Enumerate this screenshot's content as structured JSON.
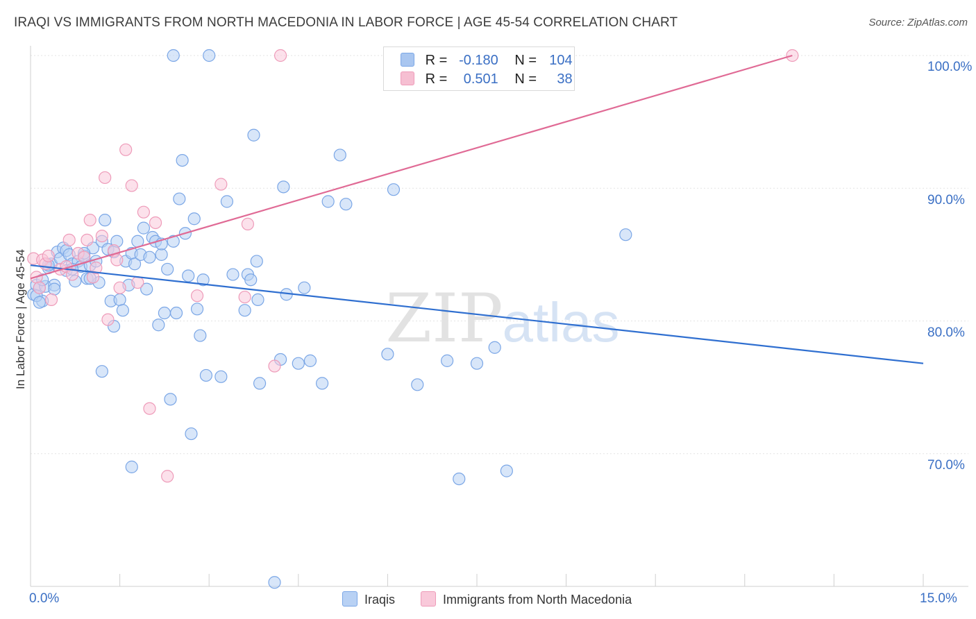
{
  "title": "IRAQI VS IMMIGRANTS FROM NORTH MACEDONIA IN LABOR FORCE | AGE 45-54 CORRELATION CHART",
  "source": "Source: ZipAtlas.com",
  "watermark": {
    "zip": "ZIP",
    "atlas": "atlas"
  },
  "legend": {
    "r_label": "R =",
    "n_label": "N =",
    "rows": [
      {
        "r": "-0.180",
        "n": "104",
        "color": "#a9c6f0",
        "border": "#7aa6e6"
      },
      {
        "r": "0.501",
        "n": "38",
        "color": "#f6bfd2",
        "border": "#ee9bb9"
      }
    ]
  },
  "bottom_legend": [
    {
      "label": "Iraqis",
      "color": "#b8d1f4",
      "border": "#7aa6e6"
    },
    {
      "label": "Immigrants from North Macedonia",
      "color": "#f9c9da",
      "border": "#ee9bb9"
    }
  ],
  "chart_data": {
    "type": "scatter",
    "title": "IRAQI VS IMMIGRANTS FROM NORTH MACEDONIA IN LABOR FORCE | AGE 45-54 CORRELATION CHART",
    "xlabel": "",
    "ylabel": "In Labor Force | Age 45-54",
    "xlim": [
      0,
      15
    ],
    "ylim": [
      60,
      100
    ],
    "x_tick_labels": [
      "0.0%",
      "15.0%"
    ],
    "y_ticks": [
      70,
      80,
      90,
      100
    ],
    "y_tick_labels": [
      "70.0%",
      "80.0%",
      "90.0%",
      "100.0%"
    ],
    "grid": true,
    "legend_position": "top-center",
    "series": [
      {
        "name": "Iraqis",
        "color": "#7aa6e6",
        "fill": "#b8d1f4",
        "trend": {
          "x": [
            0,
            15
          ],
          "y": [
            84.2,
            76.8
          ],
          "color": "#2f6fd0"
        },
        "points": [
          [
            0.05,
            82.0
          ],
          [
            0.1,
            82.7
          ],
          [
            0.15,
            82.5
          ],
          [
            0.2,
            81.5
          ],
          [
            0.25,
            82.6
          ],
          [
            0.3,
            84.0
          ],
          [
            0.35,
            84.3
          ],
          [
            0.4,
            82.7
          ],
          [
            0.45,
            85.2
          ],
          [
            0.5,
            84.7
          ],
          [
            0.55,
            85.5
          ],
          [
            0.6,
            85.3
          ],
          [
            0.65,
            85.0
          ],
          [
            0.7,
            84.3
          ],
          [
            0.75,
            83.0
          ],
          [
            0.8,
            84.5
          ],
          [
            0.85,
            84.1
          ],
          [
            0.9,
            84.9
          ],
          [
            0.95,
            83.2
          ],
          [
            1.0,
            84.2
          ],
          [
            1.05,
            85.5
          ],
          [
            1.1,
            84.5
          ],
          [
            1.15,
            82.9
          ],
          [
            1.2,
            86.0
          ],
          [
            1.25,
            87.6
          ],
          [
            1.3,
            85.4
          ],
          [
            1.35,
            81.5
          ],
          [
            1.4,
            85.2
          ],
          [
            1.45,
            86.0
          ],
          [
            1.5,
            81.6
          ],
          [
            1.55,
            80.8
          ],
          [
            1.6,
            84.5
          ],
          [
            1.65,
            82.7
          ],
          [
            1.7,
            85.1
          ],
          [
            1.75,
            84.3
          ],
          [
            1.8,
            86.0
          ],
          [
            1.85,
            85.0
          ],
          [
            1.9,
            87.0
          ],
          [
            1.95,
            82.4
          ],
          [
            2.0,
            84.8
          ],
          [
            2.05,
            86.3
          ],
          [
            2.1,
            86.0
          ],
          [
            2.15,
            79.7
          ],
          [
            2.2,
            85.0
          ],
          [
            2.25,
            80.6
          ],
          [
            2.3,
            83.9
          ],
          [
            2.35,
            74.1
          ],
          [
            2.4,
            86.0
          ],
          [
            2.45,
            80.6
          ],
          [
            2.5,
            89.2
          ],
          [
            2.55,
            92.1
          ],
          [
            2.6,
            86.6
          ],
          [
            2.65,
            83.4
          ],
          [
            2.7,
            71.5
          ],
          [
            2.75,
            87.7
          ],
          [
            2.8,
            80.9
          ],
          [
            2.85,
            78.9
          ],
          [
            2.9,
            83.1
          ],
          [
            2.95,
            75.9
          ],
          [
            3.0,
            100.0
          ],
          [
            3.2,
            75.8
          ],
          [
            3.3,
            89.0
          ],
          [
            3.4,
            83.5
          ],
          [
            3.6,
            80.8
          ],
          [
            3.65,
            83.5
          ],
          [
            3.7,
            83.1
          ],
          [
            3.75,
            94.0
          ],
          [
            3.8,
            84.5
          ],
          [
            3.82,
            81.6
          ],
          [
            3.85,
            75.3
          ],
          [
            4.1,
            60.3
          ],
          [
            4.2,
            77.1
          ],
          [
            4.25,
            90.1
          ],
          [
            4.3,
            82.0
          ],
          [
            4.5,
            76.8
          ],
          [
            4.6,
            82.5
          ],
          [
            4.7,
            77.0
          ],
          [
            4.9,
            75.3
          ],
          [
            5.0,
            89.0
          ],
          [
            5.2,
            92.5
          ],
          [
            5.3,
            88.8
          ],
          [
            6.0,
            77.5
          ],
          [
            6.1,
            89.9
          ],
          [
            6.5,
            75.2
          ],
          [
            7.0,
            77.0
          ],
          [
            7.2,
            68.1
          ],
          [
            7.5,
            76.8
          ],
          [
            7.8,
            78.0
          ],
          [
            8.0,
            68.7
          ],
          [
            10.0,
            86.5
          ],
          [
            1.7,
            69.0
          ],
          [
            1.4,
            79.6
          ],
          [
            1.2,
            76.2
          ],
          [
            0.6,
            83.8
          ],
          [
            0.3,
            84.2
          ],
          [
            2.2,
            85.8
          ],
          [
            2.4,
            100.0
          ],
          [
            1.0,
            83.2
          ],
          [
            0.9,
            85.1
          ],
          [
            0.2,
            83.1
          ],
          [
            0.1,
            81.9
          ],
          [
            0.15,
            81.4
          ],
          [
            0.4,
            82.4
          ],
          [
            0.7,
            83.9
          ]
        ]
      },
      {
        "name": "Immigrants from North Macedonia",
        "color": "#ee9bb9",
        "fill": "#f9c9da",
        "trend": {
          "x": [
            0,
            12.8
          ],
          "y": [
            83.2,
            100.0
          ],
          "color": "#e06a95"
        },
        "points": [
          [
            0.05,
            84.7
          ],
          [
            0.1,
            83.3
          ],
          [
            0.15,
            82.5
          ],
          [
            0.2,
            84.6
          ],
          [
            0.25,
            84.3
          ],
          [
            0.3,
            84.9
          ],
          [
            0.35,
            81.6
          ],
          [
            0.5,
            83.9
          ],
          [
            0.6,
            84.1
          ],
          [
            0.65,
            86.1
          ],
          [
            0.7,
            83.5
          ],
          [
            0.8,
            85.1
          ],
          [
            0.9,
            84.8
          ],
          [
            0.95,
            86.1
          ],
          [
            1.0,
            87.6
          ],
          [
            1.05,
            83.3
          ],
          [
            1.1,
            84.0
          ],
          [
            1.2,
            86.4
          ],
          [
            1.25,
            90.8
          ],
          [
            1.3,
            80.1
          ],
          [
            1.4,
            85.3
          ],
          [
            1.45,
            84.6
          ],
          [
            1.5,
            82.5
          ],
          [
            1.6,
            92.9
          ],
          [
            1.7,
            90.2
          ],
          [
            1.8,
            82.9
          ],
          [
            1.9,
            88.2
          ],
          [
            2.0,
            73.4
          ],
          [
            2.1,
            87.4
          ],
          [
            2.3,
            68.3
          ],
          [
            2.8,
            81.9
          ],
          [
            3.2,
            90.3
          ],
          [
            3.6,
            81.8
          ],
          [
            3.65,
            87.3
          ],
          [
            4.1,
            76.6
          ],
          [
            4.2,
            100.0
          ],
          [
            7.2,
            100.0
          ],
          [
            12.8,
            100.0
          ]
        ]
      }
    ]
  }
}
